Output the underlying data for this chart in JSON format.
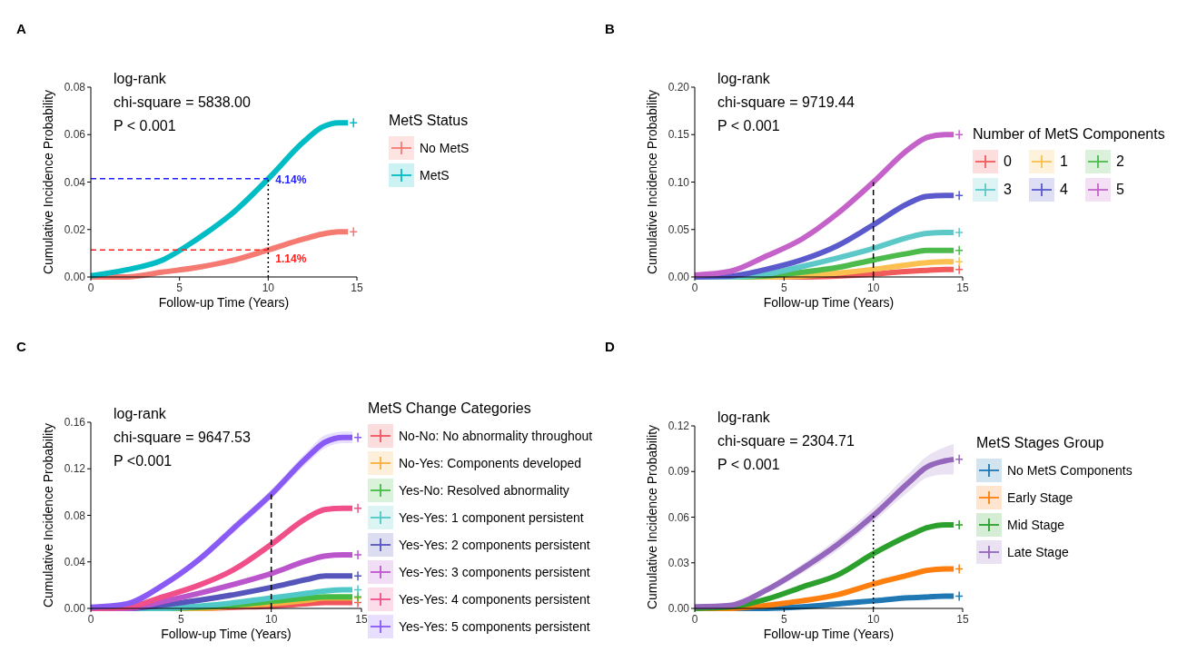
{
  "chart_data": [
    {
      "type": "line",
      "title": "A",
      "xlabel": "Follow-up Time (Years)",
      "ylabel": "Cumulative Incidence Probability",
      "legend_title": "MetS Status",
      "legend": "right",
      "x": [
        0,
        2,
        4,
        6,
        8,
        10,
        12,
        13,
        14,
        14.5
      ],
      "xlim": [
        0,
        15
      ],
      "xticks": [
        0,
        5,
        10,
        15
      ],
      "ylim": [
        0,
        0.08
      ],
      "yticks": [
        {
          "value": 0,
          "label": "0.00"
        },
        {
          "value": 0.02,
          "label": "0.02"
        },
        {
          "value": 0.04,
          "label": "0.04"
        },
        {
          "value": 0.06,
          "label": "0.06"
        },
        {
          "value": 0.08,
          "label": "0.08"
        }
      ],
      "grid": false,
      "marker": "none",
      "line_style": "solid",
      "series": [
        {
          "name": "No MetS",
          "color": "#f47a72",
          "values": [
            0,
            0,
            0.002,
            0.004,
            0.007,
            0.0114,
            0.016,
            0.018,
            0.019,
            0.019
          ]
        },
        {
          "name": "MetS",
          "color": "#00bcc4",
          "values": [
            0.0005,
            0.003,
            0.007,
            0.016,
            0.027,
            0.0414,
            0.057,
            0.063,
            0.065,
            0.065
          ]
        }
      ],
      "ref_lines": [
        {
          "axis": "y",
          "value": 0.0414,
          "color": "#1f1fff",
          "line_style": "dashed"
        },
        {
          "axis": "y",
          "value": 0.0114,
          "color": "#ff2020",
          "line_style": "dashed"
        },
        {
          "axis": "x",
          "value": 10,
          "color": "#000000",
          "line_style": "dotted"
        }
      ],
      "annotations": [
        "log-rank",
        "chi-square = 5838.00",
        "P < 0.001",
        {
          "text": "4.14%",
          "x": 10,
          "y": 0.0414
        },
        {
          "text": "1.14%",
          "x": 10,
          "y": 0.0114
        }
      ]
    },
    {
      "type": "line",
      "title": "B",
      "xlabel": "Follow-up Time (Years)",
      "ylabel": "Cumulative Incidence Probability",
      "legend_title": "Number of MetS Components",
      "legend": "right",
      "x": [
        0,
        2,
        4,
        6,
        8,
        10,
        12,
        13,
        14,
        14.5
      ],
      "xlim": [
        0,
        15
      ],
      "xticks": [
        0,
        5,
        10,
        15
      ],
      "ylim": [
        0,
        0.2
      ],
      "yticks": [
        {
          "value": 0,
          "label": "0.00"
        },
        {
          "value": 0.05,
          "label": "0.05"
        },
        {
          "value": 0.1,
          "label": "0.10"
        },
        {
          "value": 0.15,
          "label": "0.15"
        },
        {
          "value": 0.2,
          "label": "0.20"
        }
      ],
      "grid": false,
      "marker": "none",
      "line_style": "solid",
      "series": [
        {
          "name": "0",
          "color": "#f25b5b",
          "values": [
            null,
            null,
            0,
            0,
            0.001,
            0.003,
            0.006,
            0.007,
            0.008,
            0.008
          ]
        },
        {
          "name": "1",
          "color": "#fbc04f",
          "values": [
            0,
            0,
            0,
            0.001,
            0.004,
            0.008,
            0.013,
            0.015,
            0.016,
            0.016
          ]
        },
        {
          "name": "2",
          "color": "#4cbb4c",
          "values": [
            0,
            0,
            0.001,
            0.005,
            0.01,
            0.018,
            0.025,
            0.028,
            0.028,
            0.028
          ]
        },
        {
          "name": "3",
          "color": "#5cc8c8",
          "values": [
            0,
            0,
            0.003,
            0.011,
            0.02,
            0.03,
            0.042,
            0.046,
            0.047,
            0.047
          ]
        },
        {
          "name": "4",
          "color": "#5a5acc",
          "values": [
            0,
            0.001,
            0.008,
            0.018,
            0.033,
            0.055,
            0.078,
            0.085,
            0.086,
            0.086
          ]
        },
        {
          "name": "5",
          "color": "#c462c9",
          "values": [
            0.002,
            0.006,
            0.022,
            0.04,
            0.067,
            0.1,
            0.135,
            0.147,
            0.15,
            0.15
          ]
        }
      ],
      "ref_lines": [
        {
          "axis": "x",
          "value": 10,
          "color": "#000000",
          "line_style": "dashed"
        }
      ],
      "annotations": [
        "log-rank",
        "chi-square = 9719.44",
        "P < 0.001"
      ]
    },
    {
      "type": "line",
      "title": "C",
      "xlabel": "Follow-up Time (Years)",
      "ylabel": "Cumulative Incidence Probability",
      "legend_title": "MetS Change Categories",
      "legend": "right",
      "x": [
        0,
        2,
        4,
        6,
        8,
        10,
        12,
        13,
        14,
        14.5
      ],
      "xlim": [
        0,
        15
      ],
      "xticks": [
        0,
        5,
        10,
        15
      ],
      "ylim": [
        0,
        0.16
      ],
      "yticks": [
        {
          "value": 0,
          "label": "0.00"
        },
        {
          "value": 0.04,
          "label": "0.04"
        },
        {
          "value": 0.08,
          "label": "0.08"
        },
        {
          "value": 0.12,
          "label": "0.12"
        },
        {
          "value": 0.16,
          "label": "0.16"
        }
      ],
      "grid": false,
      "marker": "none",
      "line_style": "solid",
      "series": [
        {
          "name": "No-No: No abnormality throughout",
          "color": "#f2545b",
          "values": [
            null,
            null,
            0,
            0,
            0.001,
            0.002,
            0.004,
            0.005,
            0.005,
            0.005
          ]
        },
        {
          "name": "No-Yes: Components developed",
          "color": "#f5b040",
          "values": [
            null,
            null,
            0,
            0,
            0.002,
            0.004,
            0.007,
            0.009,
            0.009,
            0.009
          ]
        },
        {
          "name": "Yes-No: Resolved abnormality",
          "color": "#44bb44",
          "values": [
            0,
            0,
            0,
            0.001,
            0.003,
            0.006,
            0.009,
            0.01,
            0.01,
            0.01
          ]
        },
        {
          "name": "Yes-Yes: 1 component persistent",
          "color": "#50c8c8",
          "values": [
            0,
            0,
            0,
            0.002,
            0.005,
            0.009,
            0.013,
            0.015,
            0.016,
            0.016
          ]
        },
        {
          "name": "Yes-Yes: 2 components persistent",
          "color": "#5555bb",
          "values": [
            0,
            0,
            0.003,
            0.007,
            0.012,
            0.018,
            0.025,
            0.028,
            0.028,
            0.028
          ]
        },
        {
          "name": "Yes-Yes: 3 components persistent",
          "color": "#bb55cc",
          "values": [
            0,
            0,
            0.006,
            0.013,
            0.021,
            0.03,
            0.041,
            0.045,
            0.046,
            0.046
          ]
        },
        {
          "name": "Yes-Yes: 4 components persistent",
          "color": "#f04f8a",
          "values": [
            0,
            0.001,
            0.01,
            0.02,
            0.034,
            0.055,
            0.078,
            0.085,
            0.086,
            0.086
          ]
        },
        {
          "name": "Yes-Yes: 5 components persistent",
          "color": "#8a5af5",
          "values": [
            0.001,
            0.004,
            0.02,
            0.042,
            0.07,
            0.098,
            0.13,
            0.143,
            0.147,
            0.147
          ],
          "lower": [
            0.001,
            0.003,
            0.018,
            0.039,
            0.066,
            0.094,
            0.125,
            0.138,
            0.142,
            0.142
          ],
          "upper": [
            0.001,
            0.005,
            0.022,
            0.045,
            0.074,
            0.102,
            0.135,
            0.149,
            0.152,
            0.152
          ]
        }
      ],
      "ref_lines": [
        {
          "axis": "x",
          "value": 10,
          "color": "#000000",
          "line_style": "dashed"
        }
      ],
      "annotations": [
        "log-rank",
        "chi-square = 9647.53",
        "P <0.001"
      ]
    },
    {
      "type": "line",
      "title": "D",
      "xlabel": "Follow-up Time (Years)",
      "ylabel": "Cumulative Incidence Probability",
      "legend_title": "MetS Stages Group",
      "legend": "right",
      "x": [
        0,
        2,
        4,
        6,
        8,
        10,
        12,
        13,
        14,
        14.5
      ],
      "xlim": [
        0,
        15
      ],
      "xticks": [
        0,
        5,
        10,
        15
      ],
      "ylim": [
        0,
        0.12
      ],
      "yticks": [
        {
          "value": 0,
          "label": "0.00"
        },
        {
          "value": 0.03,
          "label": "0.03"
        },
        {
          "value": 0.06,
          "label": "0.06"
        },
        {
          "value": 0.09,
          "label": "0.09"
        },
        {
          "value": 0.12,
          "label": "0.12"
        }
      ],
      "grid": false,
      "marker": "none",
      "line_style": "solid",
      "series": [
        {
          "name": "No MetS Components",
          "color": "#1f77b4",
          "values": [
            0,
            0,
            0,
            0.001,
            0.003,
            0.005,
            0.007,
            0.0075,
            0.008,
            0.008
          ]
        },
        {
          "name": "Early Stage",
          "color": "#ff7f0e",
          "values": [
            0,
            0,
            0.002,
            0.005,
            0.009,
            0.016,
            0.022,
            0.025,
            0.026,
            0.026
          ]
        },
        {
          "name": "Mid Stage",
          "color": "#2ca02c",
          "values": [
            0,
            0.001,
            0.006,
            0.014,
            0.022,
            0.036,
            0.048,
            0.053,
            0.055,
            0.055
          ]
        },
        {
          "name": "Late Stage",
          "color": "#9467bd",
          "values": [
            0.001,
            0.002,
            0.012,
            0.026,
            0.042,
            0.061,
            0.083,
            0.093,
            0.097,
            0.098
          ],
          "lower": [
            0,
            0.001,
            0.01,
            0.023,
            0.038,
            0.057,
            0.077,
            0.086,
            0.088,
            0.088
          ],
          "upper": [
            0.002,
            0.004,
            0.014,
            0.029,
            0.046,
            0.066,
            0.089,
            0.1,
            0.106,
            0.108
          ]
        }
      ],
      "ref_lines": [
        {
          "axis": "x",
          "value": 10,
          "color": "#000000",
          "line_style": "dotted"
        }
      ],
      "annotations": [
        "log-rank",
        "chi-square = 2304.71",
        "P < 0.001"
      ]
    }
  ]
}
